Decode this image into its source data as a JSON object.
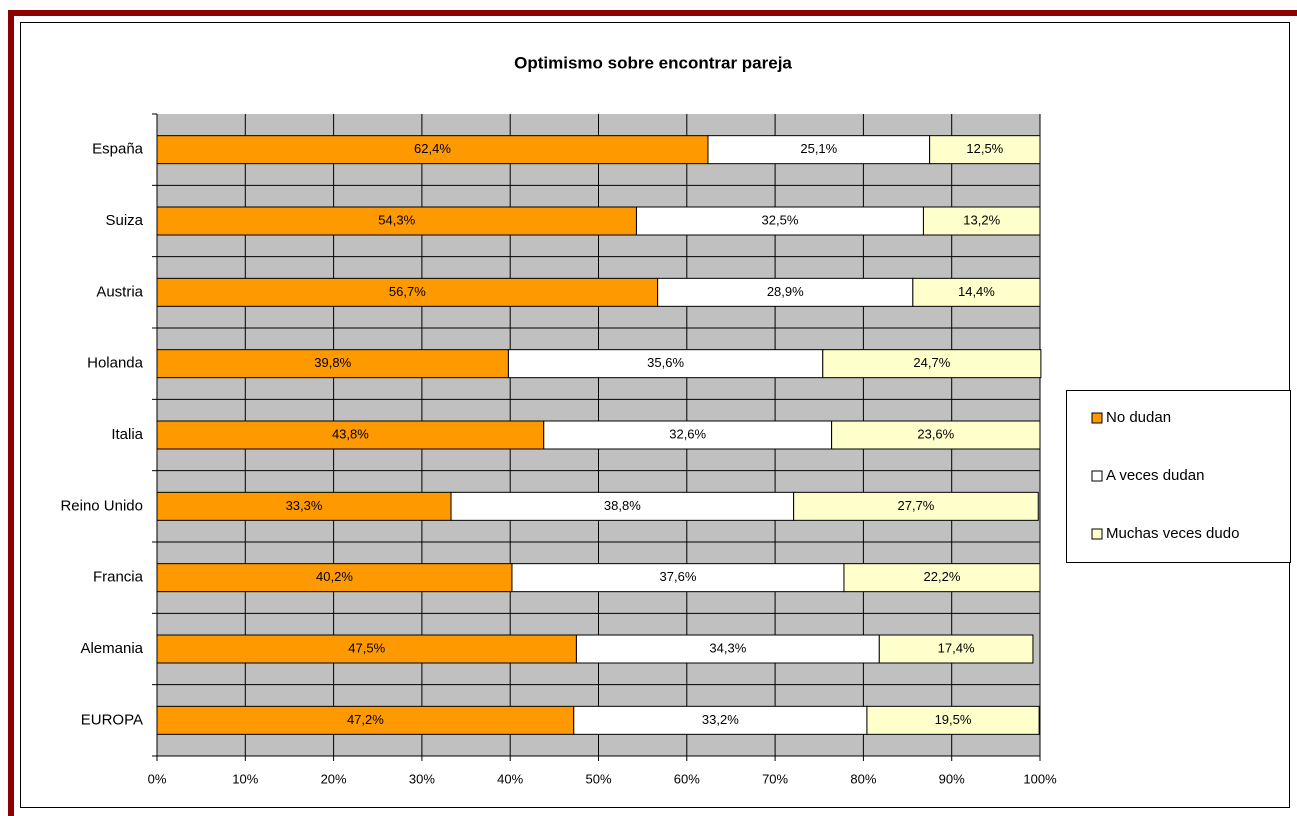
{
  "chart_data": {
    "type": "stacked-barh",
    "title": "Optimismo sobre encontrar pareja",
    "categories": [
      "España",
      "Suiza",
      "Austria",
      "Holanda",
      "Italia",
      "Reino Unido",
      "Francia",
      "Alemania",
      "EUROPA"
    ],
    "series": [
      {
        "name": "No dudan",
        "color": "#ff9900",
        "values": [
          62.4,
          54.3,
          56.7,
          39.8,
          43.8,
          33.3,
          40.2,
          47.5,
          47.2
        ],
        "value_labels": [
          "62,4%",
          "54,3%",
          "56,7%",
          "39,8%",
          "43,8%",
          "33,3%",
          "40,2%",
          "47,5%",
          "47,2%"
        ]
      },
      {
        "name": "A veces dudan",
        "color": "#ffffff",
        "values": [
          25.1,
          32.5,
          28.9,
          35.6,
          32.6,
          38.8,
          37.6,
          34.3,
          33.2
        ],
        "value_labels": [
          "25,1%",
          "32,5%",
          "28,9%",
          "35,6%",
          "32,6%",
          "38,8%",
          "37,6%",
          "34,3%",
          "33,2%"
        ]
      },
      {
        "name": "Muchas veces dudo",
        "color": "#ffffcc",
        "values": [
          12.5,
          13.2,
          14.4,
          24.7,
          23.6,
          27.7,
          22.2,
          17.4,
          19.5
        ],
        "value_labels": [
          "12,5%",
          "13,2%",
          "14,4%",
          "24,7%",
          "23,6%",
          "27,7%",
          "22,2%",
          "17,4%",
          "19,5%"
        ]
      }
    ],
    "xlim": [
      0,
      100
    ],
    "xticks": [
      {
        "value": 0,
        "label": "0%"
      },
      {
        "value": 10,
        "label": "10%"
      },
      {
        "value": 20,
        "label": "20%"
      },
      {
        "value": 30,
        "label": "30%"
      },
      {
        "value": 40,
        "label": "40%"
      },
      {
        "value": 50,
        "label": "50%"
      },
      {
        "value": 60,
        "label": "60%"
      },
      {
        "value": 70,
        "label": "70%"
      },
      {
        "value": 80,
        "label": "80%"
      },
      {
        "value": 90,
        "label": "90%"
      },
      {
        "value": 100,
        "label": "100%"
      }
    ],
    "grid": true,
    "legend": "right"
  }
}
